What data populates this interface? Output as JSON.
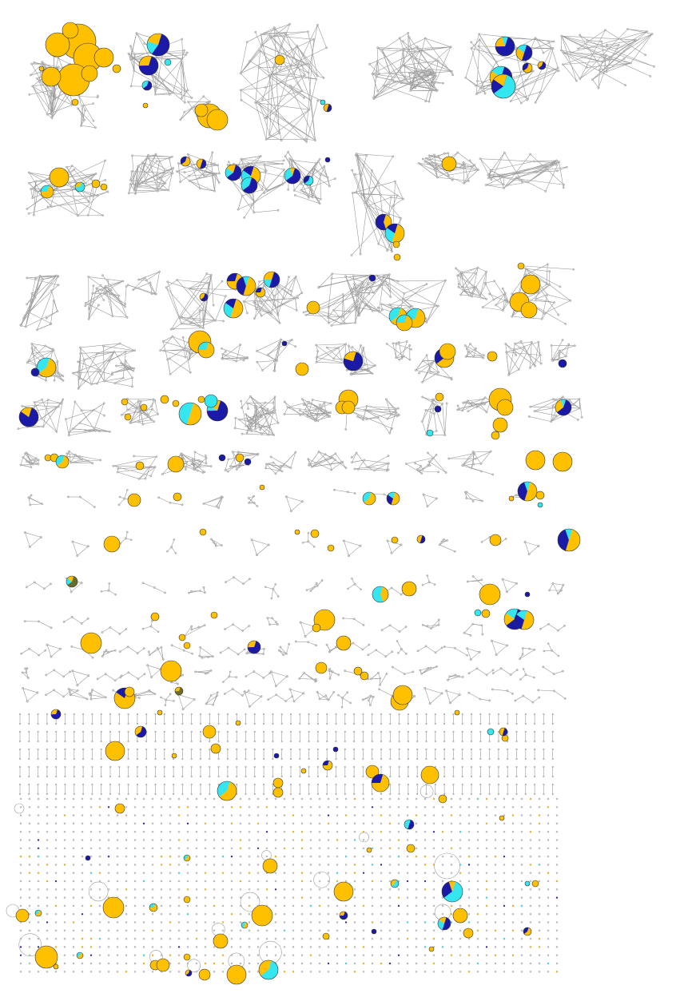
{
  "figure": {
    "colors": {
      "background": "#ffffff",
      "edge": "#9a9a9a",
      "node": "#c8c8c8",
      "pie_slices": [
        "#FFC000",
        "#33E6F0",
        "#1A1AA6",
        "#6B6B2A"
      ]
    }
  }
}
